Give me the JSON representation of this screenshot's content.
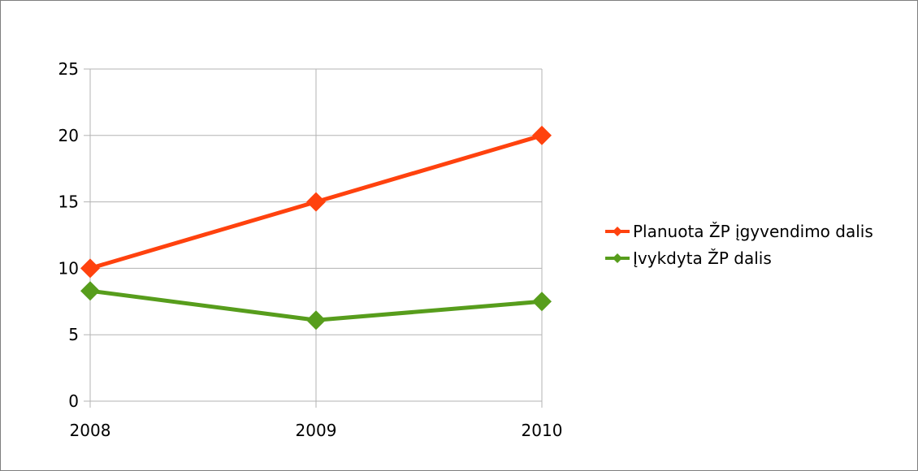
{
  "chart_data": {
    "type": "line",
    "title": "",
    "xlabel": "",
    "ylabel": "",
    "categories": [
      "2008",
      "2009",
      "2010"
    ],
    "ylim": [
      0,
      25
    ],
    "yticks": [
      0,
      5,
      10,
      15,
      20,
      25
    ],
    "grid": true,
    "legend_position": "right",
    "series": [
      {
        "name": "Planuota ŽP įgyvendimo dalis",
        "values": [
          10,
          15,
          20
        ],
        "color": "#ff420e",
        "marker": "diamond"
      },
      {
        "name": "Įvykdyta ŽP dalis",
        "values": [
          8.3,
          6.1,
          7.5
        ],
        "color": "#579d1c",
        "marker": "diamond"
      }
    ]
  }
}
